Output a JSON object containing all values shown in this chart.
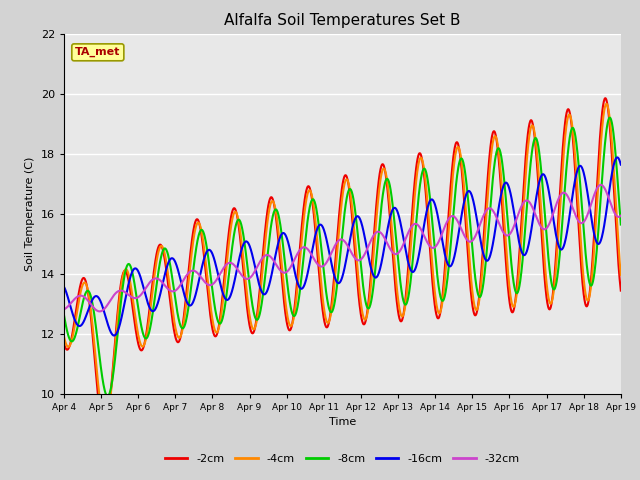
{
  "title": "Alfalfa Soil Temperatures Set B",
  "xlabel": "Time",
  "ylabel": "Soil Temperature (C)",
  "ylim": [
    10,
    22
  ],
  "background_color": "#d3d3d3",
  "plot_bg_color": "#e8e8e8",
  "legend_entries": [
    "-2cm",
    "-4cm",
    "-8cm",
    "-16cm",
    "-32cm"
  ],
  "line_colors": [
    "#ee0000",
    "#ff8800",
    "#00cc00",
    "#0000ee",
    "#cc44cc"
  ],
  "annotation_text": "TA_met",
  "annotation_color": "#aa0000",
  "annotation_bg": "#ffff99",
  "x_tick_labels": [
    "Apr 4",
    "Apr 5",
    "Apr 6",
    "Apr 7",
    "Apr 8",
    "Apr 9",
    "Apr 10",
    "Apr 11",
    "Apr 12",
    "Apr 13",
    "Apr 14",
    "Apr 15",
    "Apr 16",
    "Apr 17",
    "Apr 18",
    "Apr 19"
  ],
  "yticks": [
    10,
    12,
    14,
    16,
    18,
    20,
    22
  ]
}
